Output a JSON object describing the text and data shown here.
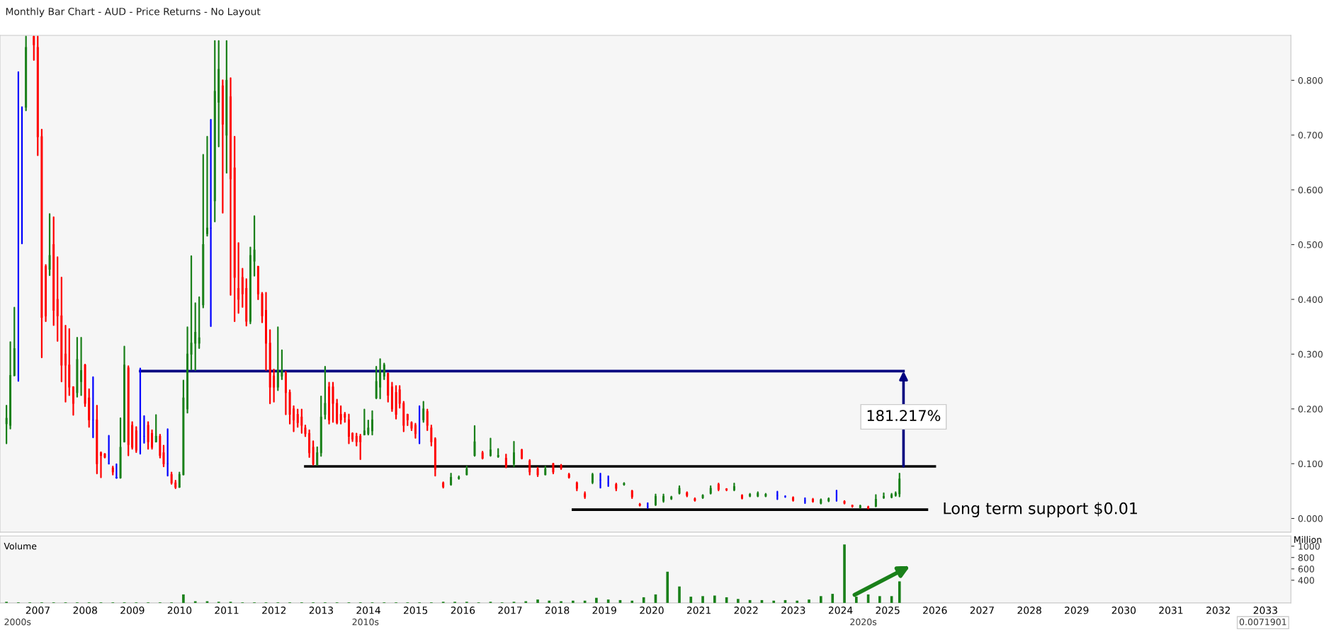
{
  "chart_data": [
    {
      "type": "candlestick",
      "title": "Monthly Bar Chart - AUD - Price Returns - No Layout",
      "x": [
        "2006-11",
        "2006-12",
        "2007-01",
        "2007-02",
        "2007-03",
        "2007-04",
        "2007-06",
        "2007-07",
        "2007-08",
        "2007-09",
        "2007-10",
        "2007-11",
        "2007-12",
        "2008-01",
        "2008-02",
        "2008-03",
        "2008-04",
        "2008-05",
        "2008-06",
        "2008-07",
        "2008-08",
        "2008-09",
        "2008-10",
        "2008-11",
        "2008-12",
        "2009-01",
        "2009-02",
        "2009-03",
        "2009-04",
        "2009-05",
        "2009-06",
        "2009-07",
        "2009-08",
        "2009-09",
        "2009-10",
        "2009-11",
        "2009-12",
        "2010-01",
        "2010-02",
        "2010-03",
        "2010-04",
        "2010-05",
        "2010-06",
        "2010-07",
        "2010-08",
        "2010-09",
        "2010-10",
        "2010-11",
        "2010-12",
        "2011-01",
        "2011-02",
        "2011-03",
        "2011-04",
        "2011-05",
        "2011-06",
        "2011-07",
        "2011-08",
        "2011-09",
        "2011-10",
        "2011-11",
        "2011-12",
        "2012-01",
        "2012-02",
        "2012-03",
        "2012-04",
        "2012-05",
        "2012-06",
        "2012-07",
        "2012-08",
        "2012-09",
        "2012-10",
        "2012-11",
        "2012-12",
        "2013-01",
        "2013-02",
        "2013-03",
        "2013-04",
        "2013-05",
        "2013-06",
        "2013-07",
        "2013-08",
        "2013-09",
        "2013-10",
        "2013-11",
        "2013-12",
        "2014-01",
        "2014-02",
        "2014-03",
        "2014-04",
        "2014-05",
        "2014-06",
        "2014-07",
        "2014-08",
        "2014-09",
        "2014-10",
        "2014-11",
        "2014-12",
        "2015-01",
        "2015-02",
        "2015-03",
        "2015-04",
        "2015-05",
        "2015-06",
        "2015-07",
        "2015-08",
        "2015-09",
        "2015-10",
        "2015-11",
        "2015-12",
        "2016-02",
        "2016-04",
        "2016-06",
        "2016-08",
        "2016-10",
        "2016-12",
        "2017-02",
        "2017-04",
        "2017-06",
        "2017-08",
        "2017-10",
        "2017-12",
        "2018-02",
        "2018-04",
        "2018-06",
        "2018-08",
        "2018-10",
        "2018-12",
        "2019-02",
        "2019-04",
        "2019-06",
        "2019-08",
        "2019-10",
        "2019-12",
        "2020-02",
        "2020-04",
        "2020-06",
        "2020-08",
        "2020-10",
        "2020-12",
        "2021-02",
        "2021-04",
        "2021-06",
        "2021-08",
        "2021-10",
        "2021-12",
        "2022-02",
        "2022-04",
        "2022-06",
        "2022-08",
        "2022-10",
        "2022-12",
        "2023-03",
        "2023-05",
        "2023-07",
        "2023-10",
        "2023-12",
        "2024-02",
        "2024-04",
        "2024-06",
        "2024-08",
        "2024-10",
        "2024-12",
        "2025-02",
        "2025-04",
        "2025-06",
        "2025-08",
        "2025-09",
        "2025-10"
      ],
      "ohlc": [
        [
          0.173,
          0.206,
          0.137,
          0.183
        ],
        [
          0.17,
          0.322,
          0.164,
          0.261
        ],
        [
          0.261,
          0.385,
          0.261,
          0.31
        ],
        [
          0.31,
          0.815,
          0.251,
          0.31
        ],
        [
          0.587,
          0.751,
          0.502,
          0.587
        ],
        [
          0.751,
          0.88,
          0.745,
          0.86
        ],
        [
          0.88,
          0.88,
          0.837,
          0.865
        ],
        [
          0.86,
          0.88,
          0.663,
          0.697
        ],
        [
          0.697,
          0.71,
          0.294,
          0.367
        ],
        [
          0.46,
          0.463,
          0.36,
          0.37
        ],
        [
          0.455,
          0.556,
          0.444,
          0.48
        ],
        [
          0.5,
          0.55,
          0.353,
          0.38
        ],
        [
          0.4,
          0.477,
          0.324,
          0.37
        ],
        [
          0.37,
          0.44,
          0.25,
          0.28
        ],
        [
          0.3,
          0.352,
          0.213,
          0.28
        ],
        [
          0.28,
          0.346,
          0.225,
          0.24
        ],
        [
          0.24,
          0.24,
          0.189,
          0.21
        ],
        [
          0.23,
          0.33,
          0.222,
          0.29
        ],
        [
          0.25,
          0.33,
          0.225,
          0.27
        ],
        [
          0.28,
          0.281,
          0.205,
          0.21
        ],
        [
          0.22,
          0.236,
          0.167,
          0.18
        ],
        [
          0.18,
          0.258,
          0.148,
          0.18
        ],
        [
          0.18,
          0.206,
          0.082,
          0.1
        ],
        [
          0.12,
          0.121,
          0.075,
          0.115
        ],
        [
          0.118,
          0.118,
          0.111,
          0.112
        ],
        [
          0.1,
          0.151,
          0.1,
          0.1
        ],
        [
          0.092,
          0.095,
          0.08,
          0.085
        ],
        [
          0.075,
          0.099,
          0.074,
          0.074
        ],
        [
          0.074,
          0.183,
          0.074,
          0.13
        ],
        [
          0.14,
          0.314,
          0.14,
          0.28
        ],
        [
          0.275,
          0.278,
          0.115,
          0.135
        ],
        [
          0.17,
          0.176,
          0.127,
          0.13
        ],
        [
          0.16,
          0.167,
          0.121,
          0.125
        ],
        [
          0.125,
          0.274,
          0.118,
          0.125
        ],
        [
          0.15,
          0.187,
          0.138,
          0.15
        ],
        [
          0.17,
          0.176,
          0.127,
          0.14
        ],
        [
          0.155,
          0.161,
          0.127,
          0.13
        ],
        [
          0.14,
          0.189,
          0.14,
          0.15
        ],
        [
          0.15,
          0.153,
          0.111,
          0.115
        ],
        [
          0.12,
          0.133,
          0.095,
          0.1
        ],
        [
          0.1,
          0.163,
          0.078,
          0.1
        ],
        [
          0.08,
          0.084,
          0.063,
          0.065
        ],
        [
          0.065,
          0.069,
          0.055,
          0.057
        ],
        [
          0.057,
          0.084,
          0.057,
          0.08
        ],
        [
          0.08,
          0.252,
          0.08,
          0.22
        ],
        [
          0.2,
          0.349,
          0.193,
          0.3
        ],
        [
          0.3,
          0.479,
          0.272,
          0.32
        ],
        [
          0.32,
          0.393,
          0.271,
          0.34
        ],
        [
          0.32,
          0.404,
          0.311,
          0.33
        ],
        [
          0.39,
          0.664,
          0.385,
          0.5
        ],
        [
          0.52,
          0.697,
          0.516,
          0.53
        ],
        [
          0.53,
          0.728,
          0.351,
          0.53
        ],
        [
          0.58,
          0.872,
          0.542,
          0.78
        ],
        [
          0.76,
          0.872,
          0.679,
          0.82
        ],
        [
          0.79,
          0.8,
          0.558,
          0.72
        ],
        [
          0.7,
          0.872,
          0.631,
          0.8
        ],
        [
          0.77,
          0.804,
          0.408,
          0.62
        ],
        [
          0.64,
          0.697,
          0.36,
          0.44
        ],
        [
          0.42,
          0.503,
          0.375,
          0.4
        ],
        [
          0.44,
          0.456,
          0.386,
          0.41
        ],
        [
          0.42,
          0.437,
          0.352,
          0.36
        ],
        [
          0.36,
          0.495,
          0.356,
          0.48
        ],
        [
          0.47,
          0.552,
          0.443,
          0.49
        ],
        [
          0.46,
          0.46,
          0.4,
          0.41
        ],
        [
          0.41,
          0.412,
          0.358,
          0.37
        ],
        [
          0.38,
          0.412,
          0.271,
          0.32
        ],
        [
          0.32,
          0.344,
          0.21,
          0.24
        ],
        [
          0.26,
          0.272,
          0.213,
          0.24
        ],
        [
          0.24,
          0.349,
          0.234,
          0.27
        ],
        [
          0.26,
          0.307,
          0.254,
          0.27
        ],
        [
          0.265,
          0.268,
          0.19,
          0.23
        ],
        [
          0.23,
          0.234,
          0.173,
          0.19
        ],
        [
          0.2,
          0.205,
          0.159,
          0.18
        ],
        [
          0.19,
          0.199,
          0.167,
          0.175
        ],
        [
          0.185,
          0.199,
          0.156,
          0.17
        ],
        [
          0.165,
          0.17,
          0.15,
          0.155
        ],
        [
          0.155,
          0.161,
          0.112,
          0.12
        ],
        [
          0.13,
          0.141,
          0.098,
          0.1
        ],
        [
          0.098,
          0.13,
          0.098,
          0.12
        ],
        [
          0.12,
          0.223,
          0.114,
          0.185
        ],
        [
          0.19,
          0.277,
          0.182,
          0.21
        ],
        [
          0.24,
          0.248,
          0.173,
          0.18
        ],
        [
          0.24,
          0.248,
          0.176,
          0.21
        ],
        [
          0.21,
          0.217,
          0.173,
          0.175
        ],
        [
          0.19,
          0.205,
          0.173,
          0.18
        ],
        [
          0.19,
          0.193,
          0.176,
          0.185
        ],
        [
          0.18,
          0.19,
          0.137,
          0.15
        ],
        [
          0.155,
          0.156,
          0.141,
          0.145
        ],
        [
          0.15,
          0.155,
          0.133,
          0.14
        ],
        [
          0.15,
          0.153,
          0.108,
          0.14
        ],
        [
          0.153,
          0.199,
          0.153,
          0.16
        ],
        [
          0.155,
          0.179,
          0.153,
          0.165
        ],
        [
          0.16,
          0.196,
          0.153,
          0.18
        ],
        [
          0.22,
          0.277,
          0.219,
          0.25
        ],
        [
          0.24,
          0.291,
          0.219,
          0.27
        ],
        [
          0.26,
          0.283,
          0.254,
          0.28
        ],
        [
          0.265,
          0.265,
          0.213,
          0.225
        ],
        [
          0.24,
          0.248,
          0.196,
          0.2
        ],
        [
          0.23,
          0.242,
          0.182,
          0.19
        ],
        [
          0.235,
          0.242,
          0.202,
          0.21
        ],
        [
          0.21,
          0.213,
          0.159,
          0.17
        ],
        [
          0.19,
          0.19,
          0.17,
          0.18
        ],
        [
          0.175,
          0.176,
          0.161,
          0.165
        ],
        [
          0.17,
          0.173,
          0.147,
          0.155
        ],
        [
          0.16,
          0.205,
          0.137,
          0.16
        ],
        [
          0.18,
          0.213,
          0.176,
          0.2
        ],
        [
          0.195,
          0.199,
          0.161,
          0.17
        ],
        [
          0.165,
          0.17,
          0.133,
          0.14
        ],
        [
          0.145,
          0.147,
          0.078,
          0.09
        ],
        [
          0.065,
          0.066,
          0.056,
          0.058
        ],
        [
          0.062,
          0.082,
          0.061,
          0.075
        ],
        [
          0.073,
          0.077,
          0.072,
          0.075
        ],
        [
          0.08,
          0.095,
          0.08,
          0.09
        ],
        [
          0.115,
          0.169,
          0.114,
          0.14
        ],
        [
          0.12,
          0.122,
          0.109,
          0.11
        ],
        [
          0.115,
          0.146,
          0.114,
          0.125
        ],
        [
          0.113,
          0.127,
          0.112,
          0.115
        ],
        [
          0.11,
          0.117,
          0.093,
          0.095
        ],
        [
          0.1,
          0.14,
          0.095,
          0.12
        ],
        [
          0.125,
          0.126,
          0.109,
          0.11
        ],
        [
          0.105,
          0.107,
          0.08,
          0.085
        ],
        [
          0.09,
          0.093,
          0.077,
          0.08
        ],
        [
          0.08,
          0.095,
          0.08,
          0.09
        ],
        [
          0.1,
          0.1,
          0.082,
          0.085
        ],
        [
          0.097,
          0.098,
          0.09,
          0.092
        ],
        [
          0.08,
          0.082,
          0.074,
          0.075
        ],
        [
          0.065,
          0.066,
          0.051,
          0.055
        ],
        [
          0.045,
          0.048,
          0.037,
          0.04
        ],
        [
          0.066,
          0.082,
          0.064,
          0.08
        ],
        [
          0.07,
          0.082,
          0.056,
          0.07
        ],
        [
          0.065,
          0.077,
          0.059,
          0.065
        ],
        [
          0.062,
          0.064,
          0.051,
          0.055
        ],
        [
          0.062,
          0.065,
          0.061,
          0.064
        ],
        [
          0.05,
          0.051,
          0.037,
          0.04
        ],
        [
          0.026,
          0.027,
          0.023,
          0.024
        ],
        [
          0.022,
          0.028,
          0.019,
          0.022
        ],
        [
          0.025,
          0.044,
          0.024,
          0.04
        ],
        [
          0.032,
          0.044,
          0.03,
          0.04
        ],
        [
          0.036,
          0.04,
          0.035,
          0.039
        ],
        [
          0.046,
          0.059,
          0.045,
          0.055
        ],
        [
          0.047,
          0.048,
          0.04,
          0.042
        ],
        [
          0.036,
          0.037,
          0.032,
          0.033
        ],
        [
          0.038,
          0.043,
          0.037,
          0.042
        ],
        [
          0.046,
          0.059,
          0.045,
          0.055
        ],
        [
          0.062,
          0.064,
          0.051,
          0.053
        ],
        [
          0.054,
          0.054,
          0.051,
          0.052
        ],
        [
          0.052,
          0.064,
          0.051,
          0.058
        ],
        [
          0.042,
          0.043,
          0.036,
          0.037
        ],
        [
          0.041,
          0.045,
          0.04,
          0.044
        ],
        [
          0.041,
          0.048,
          0.04,
          0.046
        ],
        [
          0.041,
          0.045,
          0.04,
          0.044
        ],
        [
          0.042,
          0.049,
          0.035,
          0.042
        ],
        [
          0.04,
          0.041,
          0.039,
          0.04
        ],
        [
          0.038,
          0.039,
          0.032,
          0.033
        ],
        [
          0.032,
          0.037,
          0.028,
          0.032
        ],
        [
          0.035,
          0.036,
          0.03,
          0.031
        ],
        [
          0.028,
          0.035,
          0.027,
          0.034
        ],
        [
          0.032,
          0.037,
          0.031,
          0.036
        ],
        [
          0.036,
          0.051,
          0.032,
          0.036
        ],
        [
          0.031,
          0.032,
          0.027,
          0.028
        ],
        [
          0.024,
          0.024,
          0.021,
          0.022
        ],
        [
          0.02,
          0.024,
          0.019,
          0.023
        ],
        [
          0.021,
          0.022,
          0.018,
          0.019
        ],
        [
          0.022,
          0.043,
          0.022,
          0.035
        ],
        [
          0.038,
          0.046,
          0.037,
          0.04
        ],
        [
          0.039,
          0.045,
          0.038,
          0.043
        ],
        [
          0.042,
          0.048,
          0.041,
          0.046
        ],
        [
          0.045,
          0.082,
          0.04,
          0.072
        ]
      ],
      "colors": [
        "#1a801a",
        "#1a801a",
        "#1a801a",
        "#0000ff",
        "#0000ff",
        "#1a801a",
        "#ff0000",
        "#ff0000",
        "#ff0000",
        "#ff0000",
        "#1a801a",
        "#ff0000",
        "#ff0000",
        "#ff0000",
        "#ff0000",
        "#ff0000",
        "#ff0000",
        "#1a801a",
        "#1a801a",
        "#ff0000",
        "#ff0000",
        "#0000ff",
        "#ff0000",
        "#ff0000",
        "#ff0000",
        "#0000ff",
        "#ff0000",
        "#0000ff",
        "#1a801a",
        "#1a801a",
        "#ff0000",
        "#ff0000",
        "#ff0000",
        "#0000ff",
        "#0000ff",
        "#ff0000",
        "#ff0000",
        "#1a801a",
        "#ff0000",
        "#ff0000",
        "#0000ff",
        "#ff0000",
        "#ff0000",
        "#1a801a",
        "#1a801a",
        "#1a801a",
        "#1a801a",
        "#1a801a",
        "#1a801a",
        "#1a801a",
        "#1a801a",
        "#0000ff",
        "#1a801a",
        "#1a801a",
        "#ff0000",
        "#1a801a",
        "#ff0000",
        "#ff0000",
        "#ff0000",
        "#ff0000",
        "#ff0000",
        "#1a801a",
        "#1a801a",
        "#ff0000",
        "#ff0000",
        "#ff0000",
        "#ff0000",
        "#ff0000",
        "#1a801a",
        "#1a801a",
        "#ff0000",
        "#ff0000",
        "#ff0000",
        "#ff0000",
        "#ff0000",
        "#ff0000",
        "#ff0000",
        "#ff0000",
        "#1a801a",
        "#1a801a",
        "#1a801a",
        "#ff0000",
        "#ff0000",
        "#ff0000",
        "#ff0000",
        "#ff0000",
        "#ff0000",
        "#ff0000",
        "#ff0000",
        "#ff0000",
        "#1a801a",
        "#1a801a",
        "#1a801a",
        "#1a801a",
        "#1a801a",
        "#1a801a",
        "#ff0000",
        "#ff0000",
        "#ff0000",
        "#ff0000",
        "#ff0000",
        "#ff0000",
        "#ff0000",
        "#ff0000",
        "#0000ff",
        "#1a801a",
        "#ff0000",
        "#ff0000",
        "#ff0000",
        "#ff0000",
        "#1a801a",
        "#1a801a",
        "#1a801a",
        "#1a801a",
        "#ff0000",
        "#1a801a",
        "#1a801a",
        "#ff0000",
        "#1a801a",
        "#ff0000",
        "#ff0000",
        "#ff0000",
        "#1a801a",
        "#ff0000",
        "#ff0000",
        "#ff0000",
        "#ff0000",
        "#ff0000",
        "#1a801a",
        "#0000ff",
        "#0000ff",
        "#ff0000",
        "#1a801a",
        "#ff0000",
        "#ff0000",
        "#0000ff",
        "#1a801a",
        "#1a801a",
        "#1a801a",
        "#1a801a",
        "#ff0000",
        "#ff0000",
        "#1a801a",
        "#1a801a",
        "#ff0000",
        "#ff0000",
        "#1a801a",
        "#ff0000",
        "#1a801a",
        "#1a801a",
        "#1a801a",
        "#0000ff",
        "#0000ff",
        "#ff0000",
        "#0000ff",
        "#ff0000",
        "#1a801a",
        "#1a801a",
        "#0000ff",
        "#ff0000",
        "#ff0000",
        "#1a801a",
        "#ff0000",
        "#1a801a",
        "#1a801a",
        "#1a801a",
        "#1a801a",
        "#1a801a"
      ],
      "series": [
        {
          "type": "line",
          "color": "#000080",
          "x": [
            "2009-09",
            "2025-11"
          ],
          "values": [
            0.269,
            0.269
          ]
        },
        {
          "type": "line",
          "color": "#000000",
          "x": [
            "2013-03",
            "2026-07"
          ],
          "values": [
            0.095,
            0.095
          ]
        },
        {
          "type": "line",
          "color": "#000000",
          "x": [
            "2018-11",
            "2026-05"
          ],
          "values": [
            0.016,
            0.016
          ]
        }
      ],
      "annotations": [
        "181.217%",
        "Long term support $0.01"
      ],
      "xlim": [
        "2006-09-12",
        "2034-01-15"
      ],
      "ylim": [
        -0.025,
        0.882
      ],
      "yticks": [
        {
          "value": 0,
          "label": "0.000"
        },
        {
          "value": 0.1,
          "label": "0.100"
        },
        {
          "value": 0.2,
          "label": "0.200"
        },
        {
          "value": 0.3,
          "label": "0.300"
        },
        {
          "value": 0.4,
          "label": "0.400"
        },
        {
          "value": 0.5,
          "label": "0.500"
        },
        {
          "value": 0.6,
          "label": "0.600"
        },
        {
          "value": 0.7,
          "label": "0.700"
        },
        {
          "value": 0.8,
          "label": "0.800"
        }
      ],
      "tick_labels": "y"
    },
    {
      "type": "bar",
      "title": "Volume",
      "ylabel": "Million",
      "color": "#1a801a",
      "x": [
        "2006-11",
        "2007-02",
        "2007-05",
        "2007-08",
        "2007-11",
        "2008-02",
        "2008-05",
        "2008-08",
        "2008-11",
        "2009-02",
        "2009-05",
        "2009-08",
        "2009-11",
        "2010-02",
        "2010-05",
        "2010-08",
        "2010-11",
        "2011-02",
        "2011-05",
        "2011-08",
        "2011-11",
        "2012-02",
        "2012-05",
        "2012-08",
        "2012-11",
        "2013-02",
        "2013-05",
        "2013-08",
        "2013-11",
        "2014-02",
        "2014-05",
        "2014-08",
        "2014-11",
        "2015-02",
        "2015-05",
        "2015-08",
        "2015-11",
        "2016-02",
        "2016-05",
        "2016-08",
        "2016-11",
        "2017-02",
        "2017-05",
        "2017-08",
        "2017-11",
        "2018-02",
        "2018-05",
        "2018-08",
        "2018-11",
        "2019-02",
        "2019-05",
        "2019-08",
        "2019-11",
        "2020-02",
        "2020-05",
        "2020-08",
        "2020-11",
        "2021-02",
        "2021-05",
        "2021-08",
        "2021-11",
        "2022-02",
        "2022-05",
        "2022-08",
        "2022-11",
        "2023-02",
        "2023-05",
        "2023-08",
        "2023-11",
        "2024-02",
        "2024-05",
        "2024-08",
        "2024-11",
        "2025-02",
        "2025-05",
        "2025-08",
        "2025-10"
      ],
      "values": [
        20,
        10,
        10,
        10,
        10,
        10,
        10,
        10,
        10,
        10,
        10,
        10,
        10,
        10,
        10,
        150,
        30,
        30,
        20,
        20,
        10,
        10,
        10,
        10,
        10,
        10,
        10,
        10,
        10,
        10,
        10,
        10,
        10,
        10,
        10,
        10,
        10,
        20,
        20,
        20,
        10,
        20,
        10,
        20,
        30,
        60,
        40,
        30,
        40,
        40,
        90,
        60,
        50,
        40,
        100,
        150,
        550,
        290,
        110,
        120,
        130,
        100,
        70,
        50,
        50,
        40,
        50,
        40,
        60,
        120,
        160,
        1030,
        110,
        150,
        120,
        120,
        380
      ],
      "xlim": [
        "2006-09-12",
        "2034-01-15"
      ],
      "ylim": [
        0,
        1180
      ],
      "yticks": [
        400,
        600,
        800,
        1000
      ],
      "xticks": [
        {
          "value": "2007-07-02",
          "label": "2007"
        },
        {
          "value": "2008-07-02",
          "label": "2008"
        },
        {
          "value": "2009-07-02",
          "label": "2009"
        },
        {
          "value": "2010-07-02",
          "label": "2010"
        },
        {
          "value": "2011-07-02",
          "label": "2011"
        },
        {
          "value": "2012-07-02",
          "label": "2012"
        },
        {
          "value": "2013-07-02",
          "label": "2013"
        },
        {
          "value": "2014-07-02",
          "label": "2014"
        },
        {
          "value": "2015-07-02",
          "label": "2015"
        },
        {
          "value": "2016-07-02",
          "label": "2016"
        },
        {
          "value": "2017-07-02",
          "label": "2017"
        },
        {
          "value": "2018-07-02",
          "label": "2018"
        },
        {
          "value": "2019-07-02",
          "label": "2019"
        },
        {
          "value": "2020-07-02",
          "label": "2020"
        },
        {
          "value": "2021-07-02",
          "label": "2021"
        },
        {
          "value": "2022-07-02",
          "label": "2022"
        },
        {
          "value": "2023-07-02",
          "label": "2023"
        },
        {
          "value": "2024-07-02",
          "label": "2024"
        },
        {
          "value": "2025-07-02",
          "label": "2025"
        },
        {
          "value": "2026-07-02",
          "label": "2026"
        },
        {
          "value": "2027-07-02",
          "label": "2027"
        },
        {
          "value": "2028-07-02",
          "label": "2028"
        },
        {
          "value": "2029-07-02",
          "label": "2029"
        },
        {
          "value": "2030-07-02",
          "label": "2030"
        },
        {
          "value": "2031-07-02",
          "label": "2031"
        },
        {
          "value": "2032-07-02",
          "label": "2032"
        },
        {
          "value": "2033-07-02",
          "label": "2033"
        }
      ],
      "annotations": [
        "2000s",
        "2010s",
        "2020s",
        "0.0071901"
      ]
    }
  ]
}
